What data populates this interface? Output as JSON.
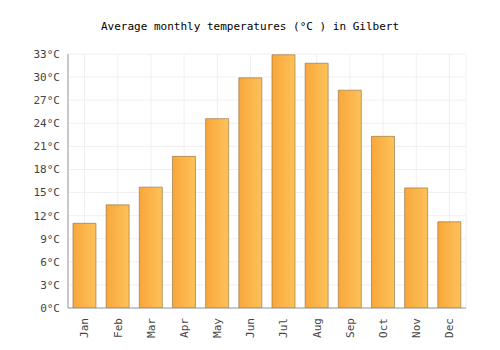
{
  "chart_data": {
    "type": "bar",
    "title": "Average monthly temperatures (°C ) in Gilbert",
    "categories": [
      "Jan",
      "Feb",
      "Mar",
      "Apr",
      "May",
      "Jun",
      "Jul",
      "Aug",
      "Sep",
      "Oct",
      "Nov",
      "Dec"
    ],
    "values": [
      11.0,
      13.4,
      15.7,
      19.7,
      24.6,
      29.9,
      32.9,
      31.8,
      28.3,
      22.3,
      15.6,
      11.2
    ],
    "color": "#f9a73a",
    "ylim": [
      0,
      33
    ],
    "yticks": [
      {
        "value": 0,
        "label": "0°C"
      },
      {
        "value": 3,
        "label": "3°C"
      },
      {
        "value": 6,
        "label": "6°C"
      },
      {
        "value": 9,
        "label": "9°C"
      },
      {
        "value": 12,
        "label": "12°C"
      },
      {
        "value": 15,
        "label": "15°C"
      },
      {
        "value": 18,
        "label": "18°C"
      },
      {
        "value": 21,
        "label": "21°C"
      },
      {
        "value": 24,
        "label": "24°C"
      },
      {
        "value": 27,
        "label": "27°C"
      },
      {
        "value": 30,
        "label": "30°C"
      },
      {
        "value": 33,
        "label": "33°C"
      }
    ],
    "grid": true
  }
}
